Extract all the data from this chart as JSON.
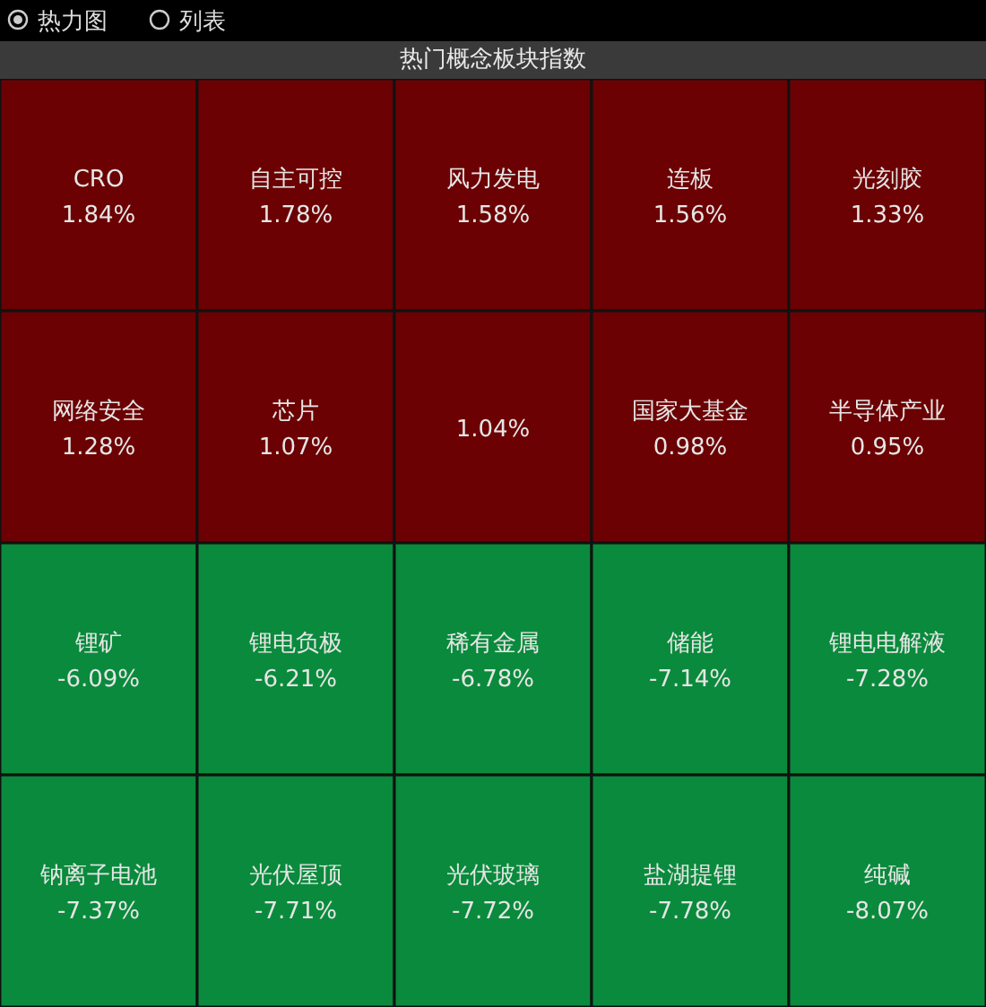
{
  "chart_data": {
    "type": "other",
    "title": "热门概念板块指数",
    "annotations": [
      "热力图",
      "列表"
    ],
    "categories": [
      "CRO",
      "自主可控",
      "风力发电",
      "连板",
      "光刻胶",
      "网络安全",
      "芯片",
      null,
      "国家大基金",
      "半导体产业",
      "锂矿",
      "锂电负极",
      "稀有金属",
      "储能",
      "锂电电解液",
      "钠离子电池",
      "光伏屋顶",
      "光伏玻璃",
      "盐湖提锂",
      "纯碱"
    ],
    "values": [
      1.84,
      1.78,
      1.58,
      1.56,
      1.33,
      1.28,
      1.07,
      1.04,
      0.98,
      0.95,
      -6.09,
      -6.21,
      -6.78,
      -7.14,
      -7.28,
      -7.37,
      -7.71,
      -7.72,
      -7.78,
      -8.07
    ],
    "value_labels": [
      "1.84%",
      "1.78%",
      "1.58%",
      "1.56%",
      "1.33%",
      "1.28%",
      "1.07%",
      "1.04%",
      "0.98%",
      "0.95%",
      "-6.09%",
      "-6.21%",
      "-6.78%",
      "-7.14%",
      "-7.28%",
      "-7.37%",
      "-7.71%",
      "-7.72%",
      "-7.78%",
      "-8.07%"
    ],
    "colors": [
      "#6b0103",
      "#6b0103",
      "#6b0103",
      "#6b0103",
      "#6b0103",
      "#6b0103",
      "#6b0103",
      "#6b0103",
      "#6b0103",
      "#6b0103",
      "#0a8a3c",
      "#0a8a3c",
      "#0a8a3c",
      "#0a8a3c",
      "#0a8a3c",
      "#0a8a3c",
      "#0a8a3c",
      "#0a8a3c",
      "#0a8a3c",
      "#0a8a3c"
    ]
  }
}
